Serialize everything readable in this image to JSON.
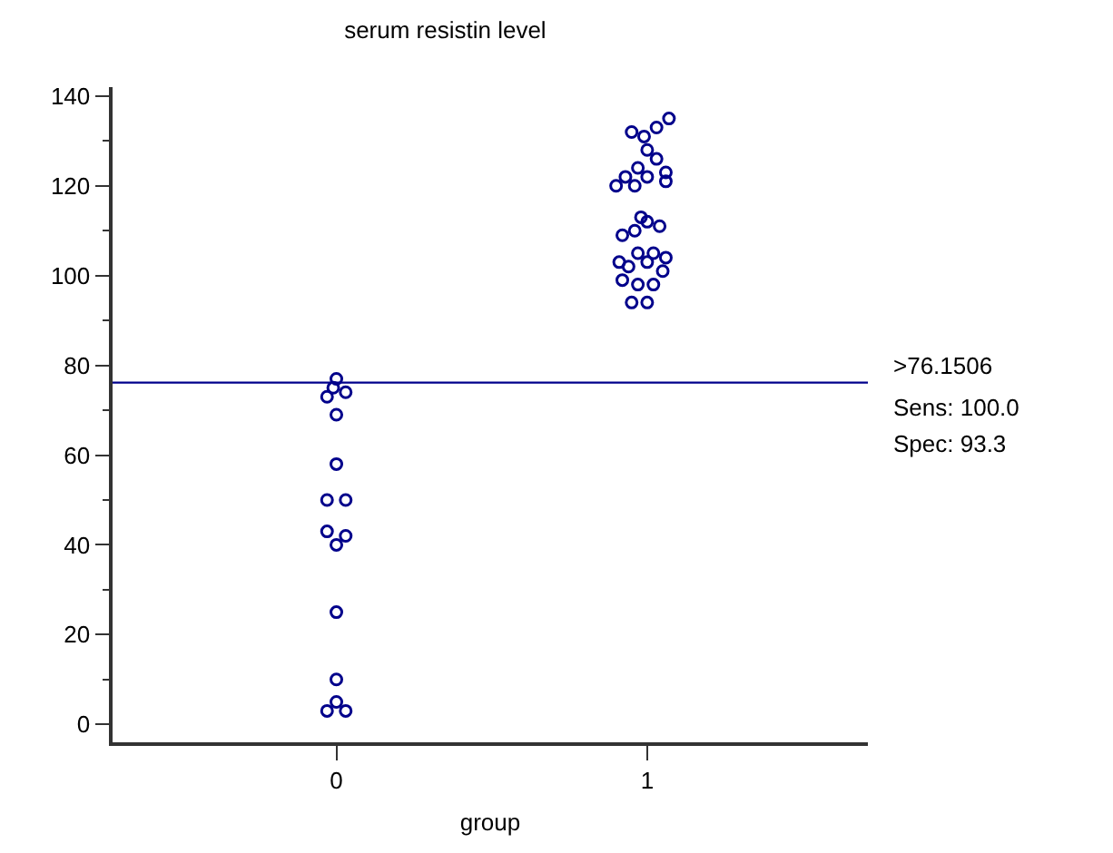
{
  "chart_data": {
    "type": "scatter",
    "title": "serum resistin level",
    "xlabel": "group",
    "xlim": [
      -0.72,
      1.71
    ],
    "xticks": [
      0,
      1
    ],
    "ylim": [
      -4,
      142
    ],
    "yticks": [
      0,
      20,
      40,
      60,
      80,
      100,
      120,
      140
    ],
    "marker": "circle",
    "series": [
      {
        "color": "#00008b",
        "x": [
          0.0,
          -0.01,
          0.03,
          -0.03,
          0.0,
          0.0,
          -0.03,
          0.03,
          -0.03,
          0.03,
          0.0,
          0.0,
          0.0,
          0.0,
          -0.03,
          0.03
        ],
        "values": [
          77,
          75,
          74,
          73,
          69,
          58,
          50,
          50,
          43,
          42,
          40,
          25,
          10,
          5,
          3,
          3
        ]
      },
      {
        "color": "#00008b",
        "x": [
          1.07,
          1.03,
          0.95,
          0.99,
          1.0,
          1.03,
          0.97,
          1.06,
          0.93,
          1.0,
          1.06,
          0.96,
          0.9,
          0.98,
          1.0,
          1.04,
          0.96,
          0.92,
          1.02,
          0.97,
          1.06,
          0.91,
          1.0,
          0.94,
          1.05,
          0.92,
          0.97,
          1.02,
          0.95,
          1.0
        ],
        "values": [
          135,
          133,
          132,
          131,
          128,
          126,
          124,
          123,
          122,
          122,
          121,
          120,
          120,
          113,
          112,
          111,
          110,
          109,
          105,
          105,
          104,
          103,
          103,
          102,
          101,
          99,
          98,
          98,
          94,
          94
        ]
      }
    ],
    "ref_lines": [
      {
        "axis": "y",
        "value": 76.1506,
        "label": ">76.1506",
        "color": "#00008b"
      }
    ],
    "annotations": [
      "Sens: 100.0",
      "Spec: 93.3"
    ]
  }
}
